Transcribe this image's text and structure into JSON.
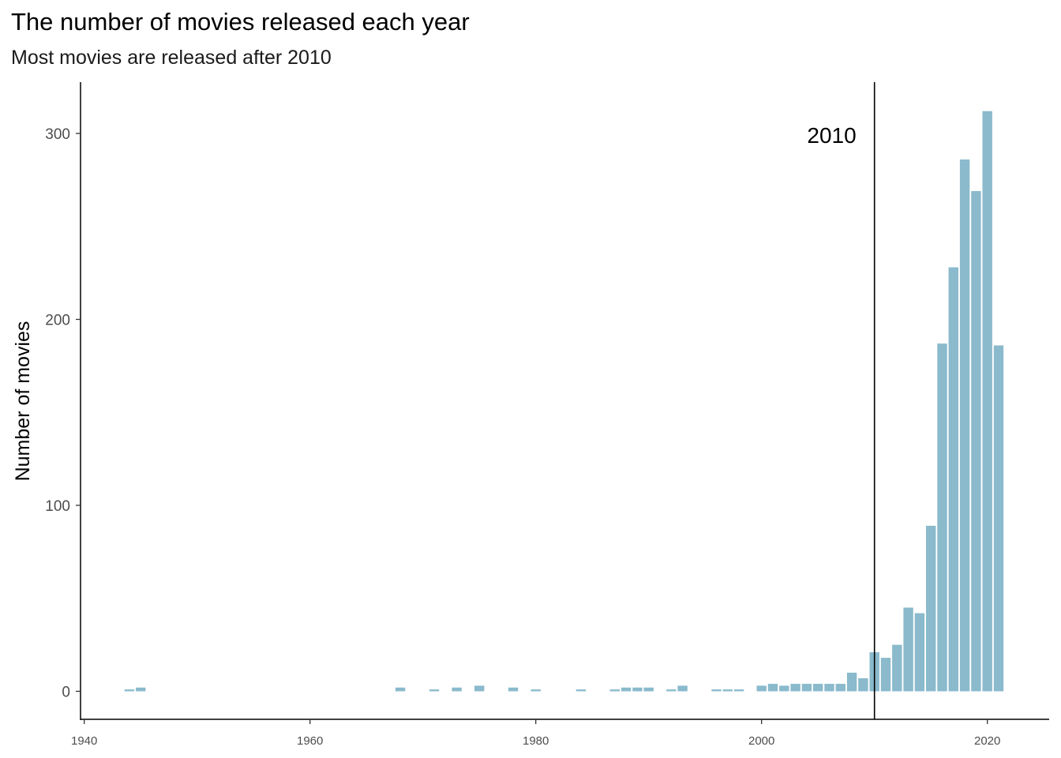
{
  "chart_data": {
    "type": "bar",
    "title": "The number of movies released each year",
    "subtitle": "Most movies are released after 2010",
    "xlabel": "",
    "ylabel": "Number of movies",
    "xlim": [
      1940,
      2025
    ],
    "ylim": [
      0,
      320
    ],
    "x_ticks": [
      1940,
      1960,
      1980,
      2000,
      2020
    ],
    "y_ticks": [
      0,
      100,
      200,
      300
    ],
    "grid": false,
    "bar_color": "#8ABACC",
    "reference_line": {
      "x": 2010,
      "label": "2010",
      "color": "#000000"
    },
    "x": [
      1944,
      1945,
      1968,
      1971,
      1973,
      1975,
      1978,
      1980,
      1984,
      1987,
      1988,
      1989,
      1990,
      1992,
      1993,
      1996,
      1997,
      1998,
      2000,
      2001,
      2002,
      2003,
      2004,
      2005,
      2006,
      2007,
      2008,
      2009,
      2010,
      2011,
      2012,
      2013,
      2014,
      2015,
      2016,
      2017,
      2018,
      2019,
      2020,
      2021
    ],
    "values": [
      1,
      2,
      2,
      1,
      2,
      3,
      2,
      1,
      1,
      1,
      2,
      2,
      2,
      1,
      3,
      1,
      1,
      1,
      3,
      4,
      3,
      4,
      4,
      4,
      4,
      4,
      10,
      7,
      21,
      18,
      25,
      45,
      42,
      89,
      187,
      228,
      286,
      269,
      312,
      186
    ]
  }
}
